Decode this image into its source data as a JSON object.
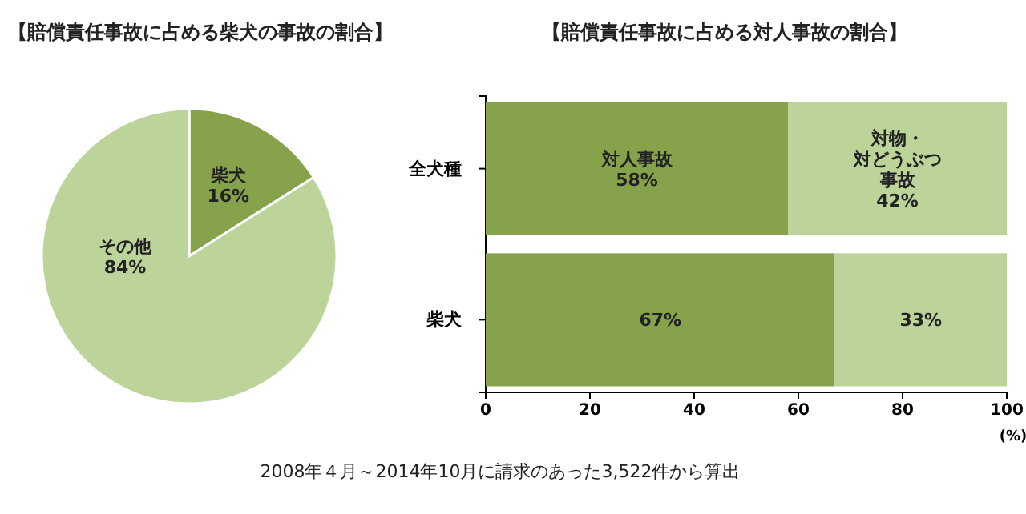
{
  "chart_data": [
    {
      "type": "pie",
      "title": "【賠償責任事故に占める柴犬の事故の割合】",
      "categories": [
        "柴犬",
        "その他"
      ],
      "values": [
        16,
        84
      ],
      "colors": [
        "#86a24b",
        "#bcd39a"
      ],
      "value_labels": [
        "16%",
        "84%"
      ]
    },
    {
      "type": "bar",
      "title": "【賠償責任事故に占める対人事故の割合】",
      "orientation": "horizontal",
      "stacked": true,
      "categories": [
        "全犬種",
        "柴犬"
      ],
      "series": [
        {
          "name": "対人事故",
          "color": "#86a24b",
          "values": [
            58,
            67
          ],
          "value_labels": [
            "58%",
            "67%"
          ]
        },
        {
          "name": "対物・対どうぶつ事故",
          "color": "#bcd39a",
          "values": [
            42,
            33
          ],
          "value_labels": [
            "42%",
            "33%"
          ]
        }
      ],
      "xlim": [
        0,
        100
      ],
      "xticks": [
        0,
        20,
        40,
        60,
        80,
        100
      ],
      "xlabel": "(%)",
      "annotations": [
        "2008年４月～2014年10月に請求のあった3,522件から算出"
      ]
    }
  ]
}
